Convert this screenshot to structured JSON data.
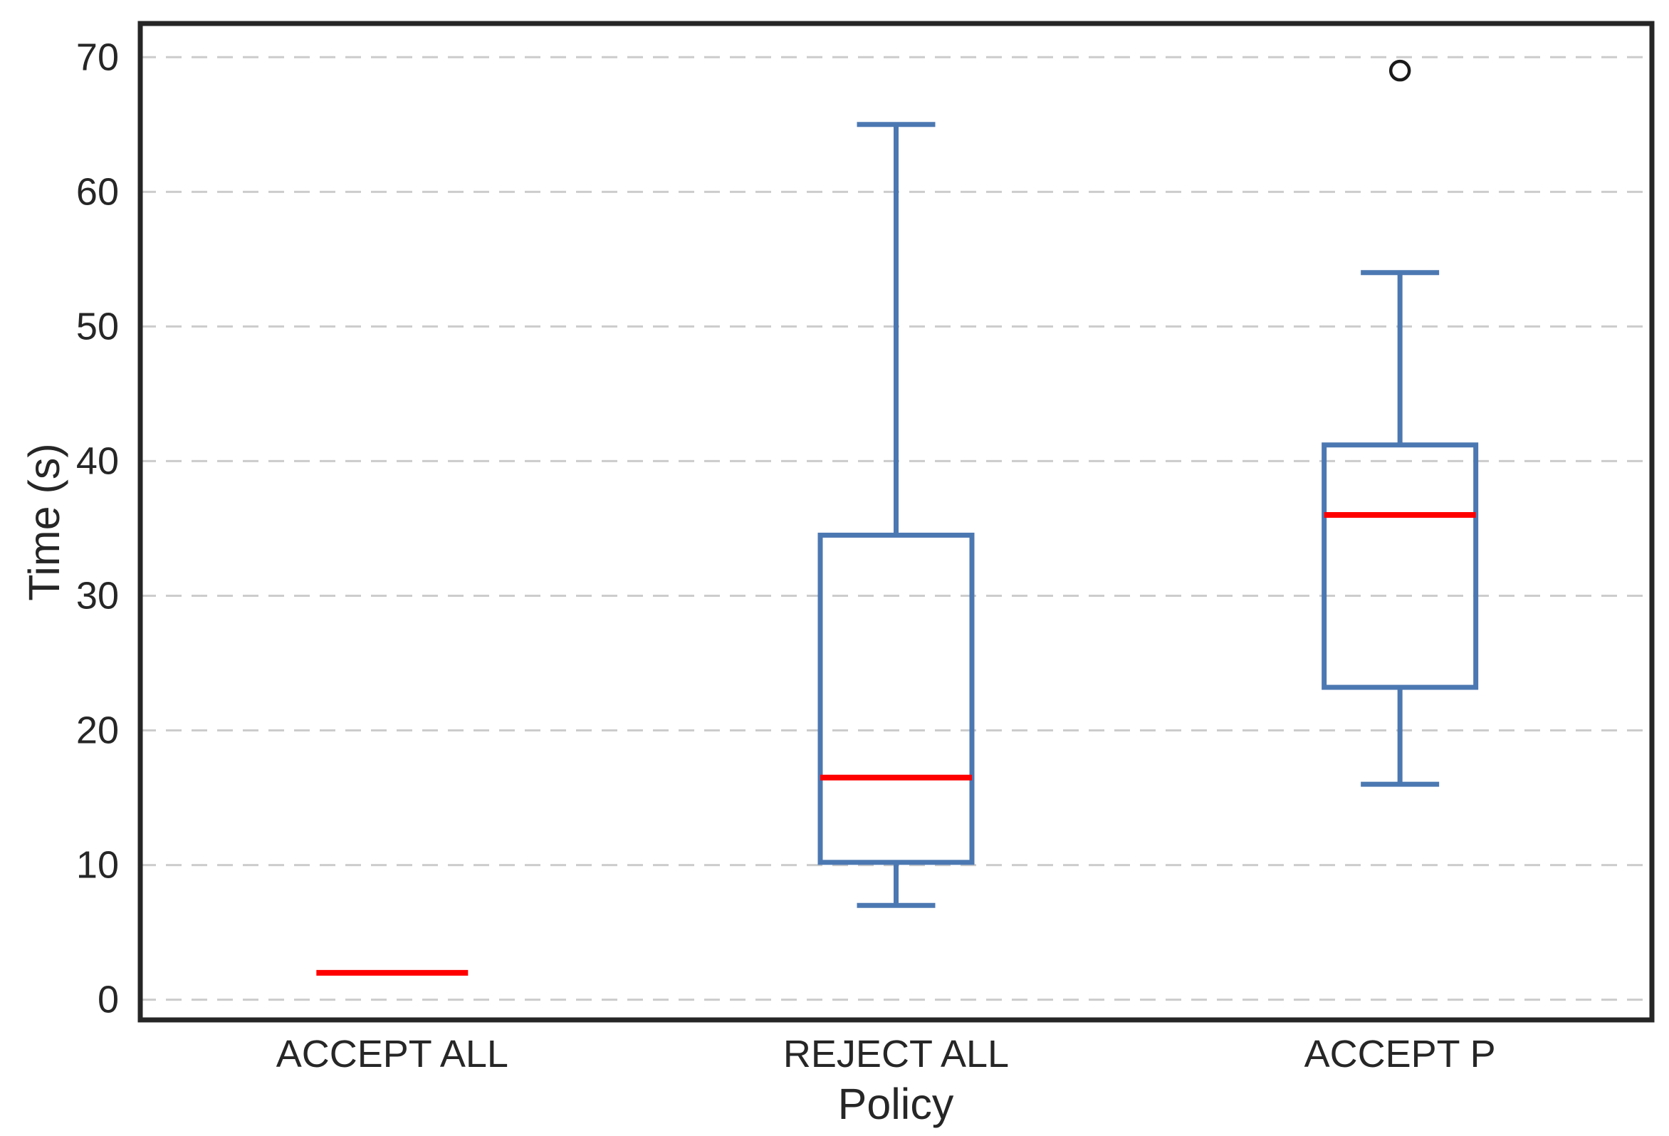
{
  "chart_data": {
    "type": "box",
    "title": "",
    "xlabel": "Policy",
    "ylabel": "Time (s)",
    "categories": [
      "ACCEPT ALL",
      "REJECT ALL",
      "ACCEPT P"
    ],
    "ylim": [
      -1.5,
      72.5
    ],
    "yticks": [
      0,
      10,
      20,
      30,
      40,
      50,
      60,
      70
    ],
    "grid": "horizontal-dashed",
    "legend": "none",
    "series": [
      {
        "category": "ACCEPT ALL",
        "whisker_low": 2,
        "q1": 2,
        "median": 2,
        "q3": 2,
        "whisker_high": 2,
        "outliers": []
      },
      {
        "category": "REJECT ALL",
        "whisker_low": 7,
        "q1": 10.2,
        "median": 16.5,
        "q3": 34.5,
        "whisker_high": 65,
        "outliers": []
      },
      {
        "category": "ACCEPT P",
        "whisker_low": 16,
        "q1": 23.2,
        "median": 36,
        "q3": 41.2,
        "whisker_high": 54,
        "outliers": [
          69
        ]
      }
    ],
    "colors": {
      "box": "#4C78B2",
      "median": "#FF0000",
      "outlier_edge": "#1A1A1A",
      "grid": "#CCCCCC",
      "axis": "#262626",
      "background": "#FFFFFF"
    }
  }
}
